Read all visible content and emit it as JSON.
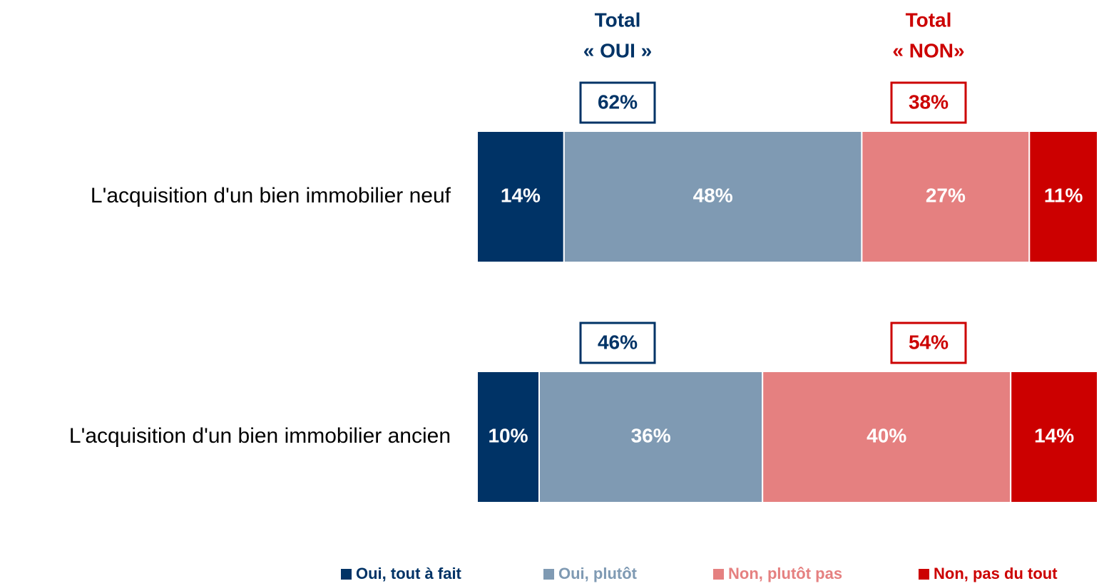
{
  "chart_data": {
    "type": "stacked-bar",
    "orientation": "horizontal",
    "categories": [
      "L'acquisition d'un bien immobilier neuf",
      "L'acquisition d'un bien immobilier ancien"
    ],
    "xlim": [
      0,
      100
    ],
    "series": [
      {
        "name": "Oui, tout à fait",
        "color": "#003366",
        "values": [
          14,
          10
        ],
        "value_labels": [
          "14%",
          "10%"
        ]
      },
      {
        "name": "Oui, plutôt",
        "color": "#7f9ab3",
        "values": [
          48,
          36
        ],
        "value_labels": [
          "48%",
          "36%"
        ]
      },
      {
        "name": "Non, plutôt pas",
        "color": "#e58080",
        "values": [
          27,
          40
        ],
        "value_labels": [
          "27%",
          "40%"
        ]
      },
      {
        "name": "Non, pas du tout",
        "color": "#cc0000",
        "values": [
          11,
          14
        ],
        "value_labels": [
          "11%",
          "14%"
        ]
      }
    ],
    "totals": [
      {
        "title": [
          "Total",
          "« OUI »"
        ],
        "color": "#003366",
        "values": [
          62,
          46
        ],
        "value_labels": [
          "62%",
          "46%"
        ]
      },
      {
        "title": [
          "Total",
          "« NON»"
        ],
        "color": "#cc0000",
        "values": [
          38,
          54
        ],
        "value_labels": [
          "38%",
          "54%"
        ]
      }
    ],
    "legend": "bottom"
  }
}
